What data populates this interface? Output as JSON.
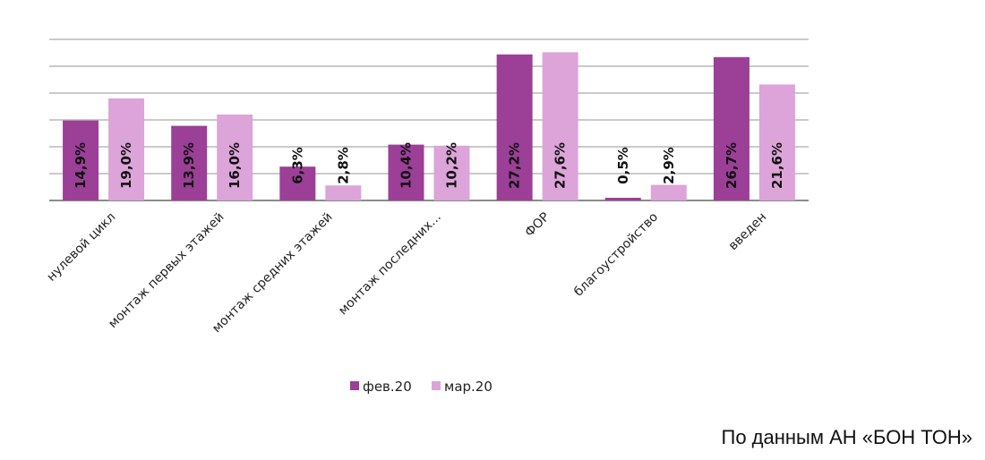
{
  "chart_data": {
    "type": "bar",
    "categories": [
      "нулевой цикл",
      "монтаж первых этажей",
      "монтаж средних этажей",
      "монтаж последних...",
      "ФОР",
      "благоустройство",
      "введен"
    ],
    "series": [
      {
        "name": "фев.20",
        "color": "#9b3f97",
        "values": [
          14.9,
          13.9,
          6.3,
          10.4,
          27.2,
          0.5,
          26.7
        ],
        "labels": [
          "14,9%",
          "13,9%",
          "6,3%",
          "10,4%",
          "27,2%",
          "0,5%",
          "26,7%"
        ]
      },
      {
        "name": "мар.20",
        "color": "#dca4d8",
        "values": [
          19.0,
          16.0,
          2.8,
          10.2,
          27.6,
          2.9,
          21.6
        ],
        "labels": [
          "19,0%",
          "16,0%",
          "2,8%",
          "10,2%",
          "27,6%",
          "2,9%",
          "21,6%"
        ]
      }
    ],
    "ylim": [
      0,
      30
    ],
    "grid": true,
    "legend_position": "bottom"
  },
  "source_note": "По данным АН «БОН ТОН»"
}
